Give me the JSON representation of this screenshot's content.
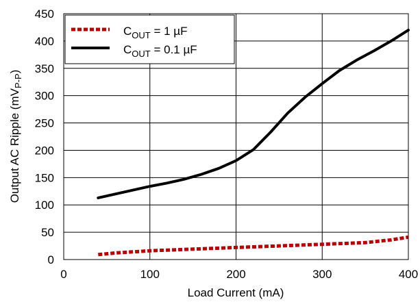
{
  "chart_data": {
    "type": "line",
    "title": "",
    "xlabel": "Load Current (mA)",
    "ylabel": "Output AC Ripple (mVP-P)",
    "ylabel_parts": {
      "main": "Output AC Ripple (mV",
      "sub": "P-P",
      "end": ")"
    },
    "xlim": [
      0,
      400
    ],
    "ylim": [
      0,
      450
    ],
    "x_ticks": [
      0,
      100,
      200,
      300,
      400
    ],
    "y_ticks": [
      0,
      50,
      100,
      150,
      200,
      250,
      300,
      350,
      400,
      450
    ],
    "grid": true,
    "legend_position": "top-left",
    "series": [
      {
        "name": "COUT = 1 µF",
        "legend": {
          "pre": "C",
          "sub": "OUT",
          "post": " = 1 µF"
        },
        "color": "#c00000",
        "style": "dotted",
        "x": [
          40,
          60,
          80,
          100,
          150,
          200,
          250,
          300,
          350,
          380,
          400
        ],
        "y": [
          9,
          12,
          14,
          16,
          19,
          22,
          25,
          28,
          31,
          36,
          41
        ]
      },
      {
        "name": "COUT = 0.1 µF",
        "legend": {
          "pre": "C",
          "sub": "OUT",
          "post": " = 0.1 µF"
        },
        "color": "#000000",
        "style": "solid",
        "x": [
          40,
          60,
          80,
          100,
          120,
          140,
          160,
          180,
          200,
          220,
          240,
          260,
          280,
          300,
          320,
          340,
          360,
          380,
          400
        ],
        "y": [
          113,
          120,
          127,
          134,
          140,
          147,
          156,
          167,
          181,
          201,
          233,
          268,
          297,
          322,
          346,
          365,
          382,
          400,
          420
        ]
      }
    ]
  }
}
